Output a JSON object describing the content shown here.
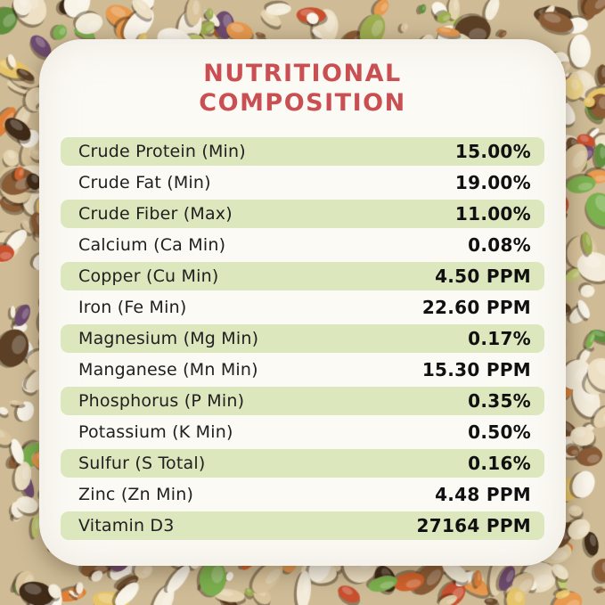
{
  "title": {
    "line1": "NUTRITIONAL",
    "line2": "COMPOSITION"
  },
  "table": {
    "rows": [
      {
        "label": "Crude Protein (Min)",
        "value": "15.00%"
      },
      {
        "label": "Crude Fat (Min)",
        "value": "19.00%"
      },
      {
        "label": "Crude Fiber (Max)",
        "value": "11.00%"
      },
      {
        "label": "Calcium (Ca Min)",
        "value": "0.08%"
      },
      {
        "label": "Copper (Cu Min)",
        "value": "4.50 PPM"
      },
      {
        "label": "Iron (Fe Min)",
        "value": "22.60 PPM"
      },
      {
        "label": "Magnesium (Mg Min)",
        "value": "0.17%"
      },
      {
        "label": "Manganese (Mn Min)",
        "value": "15.30 PPM"
      },
      {
        "label": "Phosphorus (P Min)",
        "value": "0.35%"
      },
      {
        "label": "Potassium (K Min)",
        "value": "0.50%"
      },
      {
        "label": "Sulfur (S Total)",
        "value": "0.16%"
      },
      {
        "label": "Zinc (Zn Min)",
        "value": "4.48 PPM"
      },
      {
        "label": "Vitamin D3",
        "value": "27164 PPM"
      }
    ]
  },
  "colors": {
    "accent": "#C94F52",
    "row": "#DCE7BD",
    "text": "#202020",
    "card": "#FBFAF5"
  }
}
